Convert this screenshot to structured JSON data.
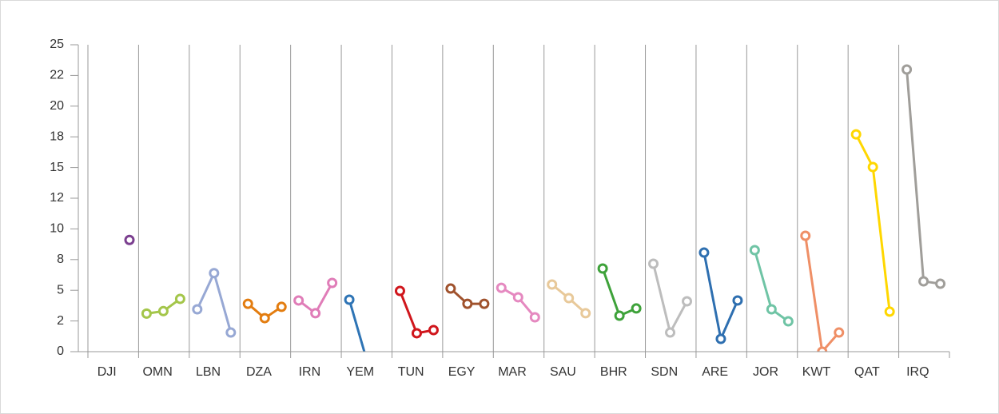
{
  "chart_data": {
    "type": "line",
    "categories": [
      "DJI",
      "OMN",
      "LBN",
      "DZA",
      "IRN",
      "YEM",
      "TUN",
      "EGY",
      "MAR",
      "SAU",
      "BHR",
      "SDN",
      "ARE",
      "JOR",
      "KWT",
      "QAT",
      "IRQ"
    ],
    "colors": [
      "#7b3f8f",
      "#a4c64a",
      "#97a8d4",
      "#e37d10",
      "#e07db8",
      "#2e74b5",
      "#d0161c",
      "#a0522d",
      "#e589c0",
      "#e8c99a",
      "#3ea23a",
      "#bdbdbd",
      "#2e6fb0",
      "#6fc4a5",
      "#ef8f66",
      "#ffd700",
      "#a09e9a"
    ],
    "values": [
      [
        null,
        null,
        9.1
      ],
      [
        3.1,
        3.3,
        4.3
      ],
      [
        3.45,
        6.4,
        1.56
      ],
      [
        3.9,
        2.73,
        3.65
      ],
      [
        4.17,
        3.13,
        5.6
      ],
      [
        4.23,
        -0.5,
        null
      ],
      [
        4.95,
        1.5,
        1.76
      ],
      [
        5.14,
        3.9,
        3.9
      ],
      [
        5.2,
        4.43,
        2.8
      ],
      [
        5.47,
        4.36,
        3.13
      ],
      [
        6.77,
        2.93,
        3.52
      ],
      [
        7.16,
        1.56,
        4.1
      ],
      [
        8.07,
        1.04,
        4.17
      ],
      [
        8.27,
        3.45,
        2.47
      ],
      [
        9.44,
        0,
        1.56
      ],
      [
        17.7,
        15.04,
        3.26
      ],
      [
        22.98,
        5.73,
        5.53
      ]
    ],
    "ylim": [
      0,
      25
    ],
    "yticks": [
      0,
      {
        "value": 2.5,
        "label": "2"
      },
      5,
      {
        "value": 7.5,
        "label": "8"
      },
      10,
      {
        "value": 12.5,
        "label": "12"
      },
      15,
      {
        "value": 17.5,
        "label": "18"
      },
      20,
      {
        "value": 22.5,
        "label": "22"
      },
      25
    ]
  }
}
